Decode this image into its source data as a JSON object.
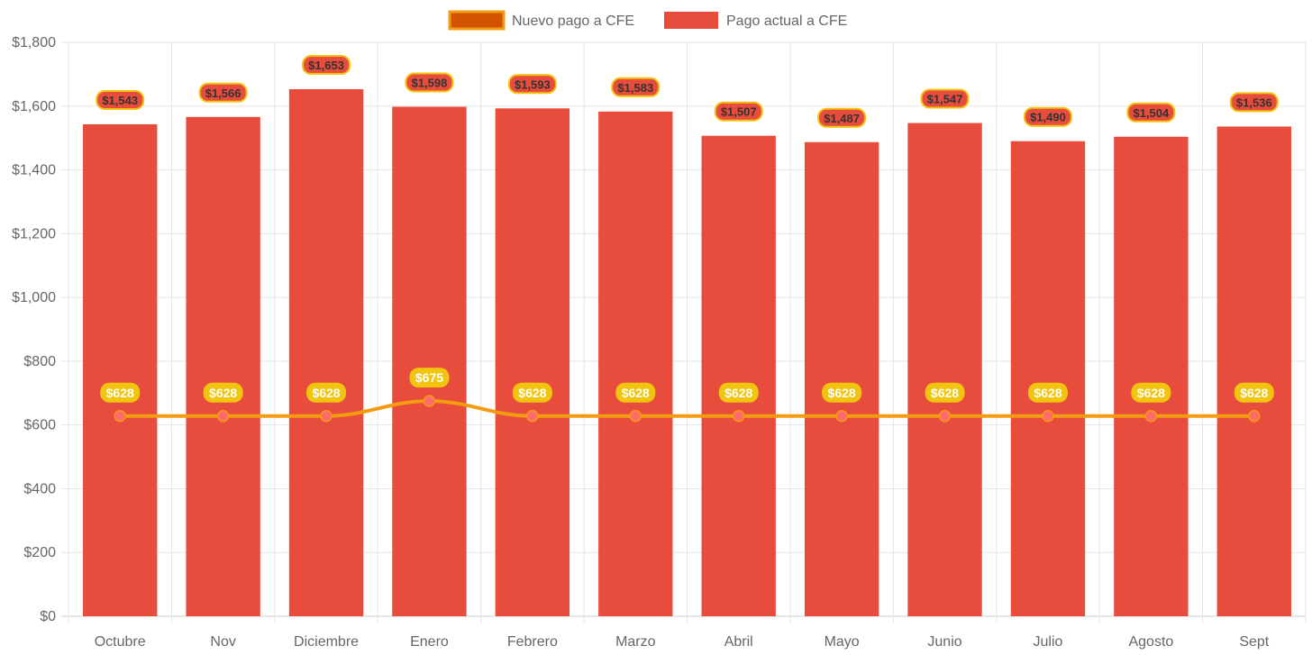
{
  "chart_data": {
    "type": "bar",
    "title": "",
    "xlabel": "",
    "ylabel": "",
    "ylim": [
      0,
      1800
    ],
    "yticks": [
      0,
      200,
      400,
      600,
      800,
      1000,
      1200,
      1400,
      1600,
      1800
    ],
    "ytick_labels": [
      "$0",
      "$200",
      "$400",
      "$600",
      "$800",
      "$1,000",
      "$1,200",
      "$1,400",
      "$1,600",
      "$1,800"
    ],
    "grid": true,
    "legend_position": "top-center",
    "categories": [
      "Octubre",
      "Nov",
      "Diciembre",
      "Enero",
      "Febrero",
      "Marzo",
      "Abril",
      "Mayo",
      "Junio",
      "Julio",
      "Agosto",
      "Sept"
    ],
    "series": [
      {
        "name": "Nuevo pago a CFE",
        "type": "line",
        "color": "#f39c12",
        "point_color": "#ff6b6b",
        "label_bg": "#f1c40f",
        "legend_fill": "#d35400",
        "legend_border": "#f39c12",
        "values": [
          628,
          628,
          628,
          675,
          628,
          628,
          628,
          628,
          628,
          628,
          628,
          628
        ],
        "labels": [
          "$628",
          "$628",
          "$628",
          "$675",
          "$628",
          "$628",
          "$628",
          "$628",
          "$628",
          "$628",
          "$628",
          "$628"
        ]
      },
      {
        "name": "Pago actual a CFE",
        "type": "bar",
        "color": "#e74c3c",
        "label_bg": "#e74c3c",
        "label_border": "#f1c40f",
        "values": [
          1543,
          1566,
          1653,
          1598,
          1593,
          1583,
          1507,
          1487,
          1547,
          1490,
          1504,
          1536
        ],
        "labels": [
          "$1,543",
          "$1,566",
          "$1,653",
          "$1,598",
          "$1,593",
          "$1,583",
          "$1,507",
          "$1,487",
          "$1,547",
          "$1,490",
          "$1,504",
          "$1,536"
        ]
      }
    ]
  }
}
